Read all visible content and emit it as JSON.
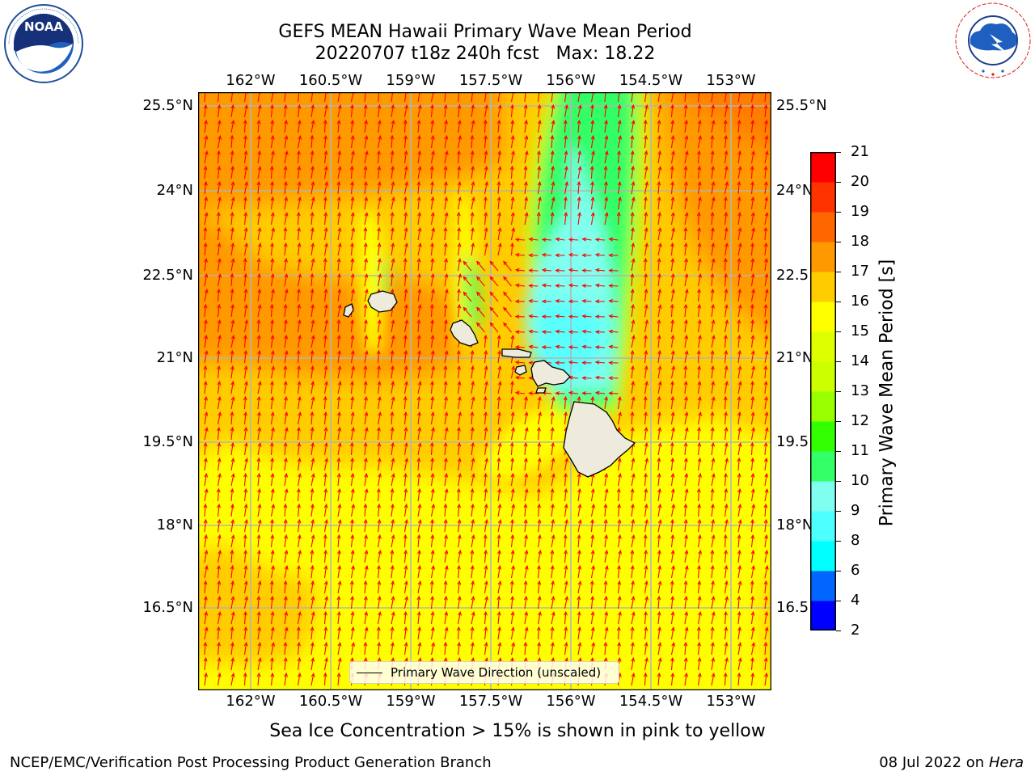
{
  "header": {
    "title_line1": "GEFS MEAN Hawaii Primary Wave Mean Period",
    "title_line2": "20220707 t18z 240h fcst   Max: 18.22"
  },
  "logos": {
    "noaa": {
      "text": "NOAA",
      "ring_text": "NATIONAL OCEANIC AND ATMOSPHERIC ADMINISTRATION · U.S. DEPARTMENT OF COMMERCE"
    },
    "nws": {
      "ring_text": "NATIONAL WEATHER SERVICE"
    }
  },
  "map": {
    "lon_ticks": [
      "162°W",
      "160.5°W",
      "159°W",
      "157.5°W",
      "156°W",
      "154.5°W",
      "153°W"
    ],
    "lat_ticks": [
      "25.5°N",
      "24°N",
      "22.5°N",
      "21°N",
      "19.5°N",
      "18°N",
      "16.5°N"
    ],
    "lat_ticks_right": [
      "25.5°N",
      "24°N",
      "22.5",
      "21°N",
      "19.5",
      "18°N",
      "16.5"
    ],
    "arrow_color": "#ff0000",
    "land_color": "#eeebdc",
    "grid_color": "#b4b4b4"
  },
  "legend": {
    "label": "Primary Wave Direction (unscaled)"
  },
  "colorbar": {
    "label": "Primary Wave Mean Period [s]",
    "tick_labels": [
      "2",
      "4",
      "6",
      "8",
      "9",
      "10",
      "11",
      "12",
      "13",
      "14",
      "15",
      "16",
      "17",
      "18",
      "19",
      "20",
      "21"
    ],
    "levels": [
      2,
      4,
      6,
      8,
      9,
      10,
      11,
      12,
      13,
      14,
      15,
      16,
      17,
      18,
      19,
      20,
      21
    ],
    "colors": [
      "#0000ff",
      "#0066ff",
      "#00ffff",
      "#4dffff",
      "#80fff0",
      "#33ff66",
      "#33ff00",
      "#99ff00",
      "#ccff00",
      "#ddff00",
      "#ffff00",
      "#ffcc00",
      "#ff9900",
      "#ff6600",
      "#ff3300",
      "#ff0000"
    ]
  },
  "footer": {
    "note": "Sea Ice Concentration > 15% is shown in pink to yellow",
    "credit": "NCEP/EMC/Verification Post Processing Product Generation Branch",
    "date": "08 Jul 2022 on",
    "machine": "Hera"
  }
}
